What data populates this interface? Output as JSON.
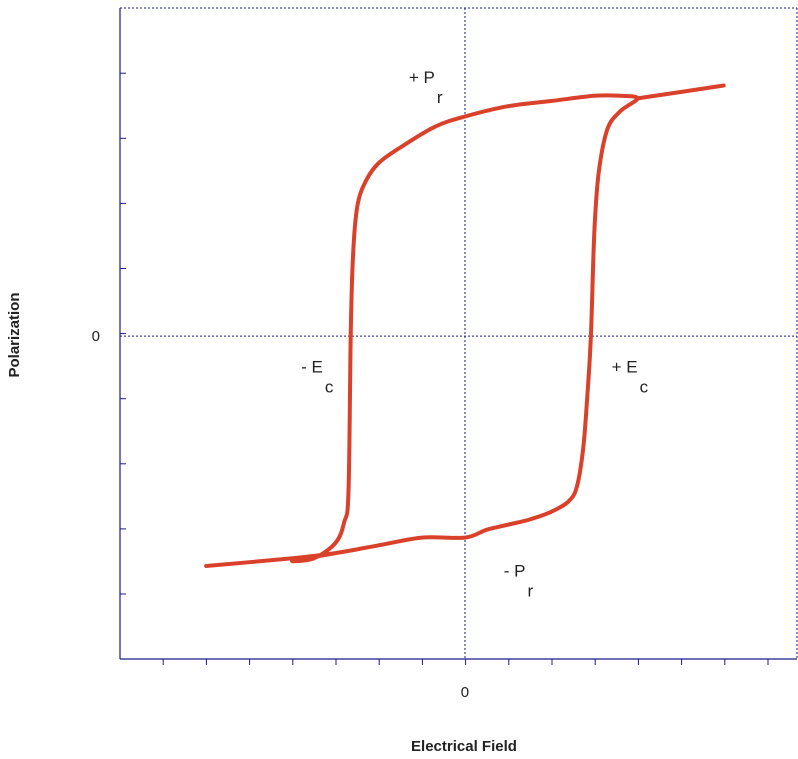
{
  "chart_data": {
    "type": "line",
    "xlabel": "Electrical Field",
    "ylabel": "Polarization",
    "x_ticks": [
      {
        "value": 0,
        "label": "0"
      }
    ],
    "y_ticks": [
      {
        "value": 0,
        "label": "0"
      }
    ],
    "xlim": [
      -8,
      7.7
    ],
    "ylim": [
      -1.25,
      1.27
    ],
    "grid": false,
    "zero_lines": true,
    "series_color": "#d9412b",
    "axis_color": "#1a1a8c",
    "series": [
      {
        "points": [
          [
            -6.0,
            -0.89
          ],
          [
            -4.0,
            -0.86
          ],
          [
            -3.0,
            -0.84
          ],
          [
            -2.0,
            -0.81
          ],
          [
            -1.0,
            -0.78
          ],
          [
            0.0,
            -0.78
          ],
          [
            0.5,
            -0.75
          ],
          [
            1.0,
            -0.73
          ],
          [
            1.5,
            -0.71
          ],
          [
            2.0,
            -0.68
          ],
          [
            2.4,
            -0.64
          ],
          [
            2.6,
            -0.58
          ],
          [
            2.75,
            -0.42
          ],
          [
            2.85,
            -0.2
          ],
          [
            2.92,
            0.0
          ],
          [
            3.0,
            0.4
          ],
          [
            3.1,
            0.63
          ],
          [
            3.3,
            0.8
          ],
          [
            3.6,
            0.87
          ],
          [
            4.0,
            0.92
          ],
          [
            3.6,
            0.93
          ],
          [
            3.0,
            0.93
          ],
          [
            2.0,
            0.91
          ],
          [
            1.0,
            0.89
          ],
          [
            0.0,
            0.85
          ],
          [
            -0.7,
            0.81
          ],
          [
            -1.5,
            0.73
          ],
          [
            -2.0,
            0.67
          ],
          [
            -2.3,
            0.6
          ],
          [
            -2.5,
            0.5
          ],
          [
            -2.6,
            0.3
          ],
          [
            -2.65,
            0.0
          ],
          [
            -2.7,
            -0.6
          ],
          [
            -2.8,
            -0.72
          ],
          [
            -3.0,
            -0.8
          ],
          [
            -3.5,
            -0.86
          ],
          [
            -4.0,
            -0.87
          ],
          [
            -3.0,
            -0.84
          ]
        ],
        "extension": [
          [
            4.0,
            0.92
          ],
          [
            6.0,
            0.97
          ]
        ]
      }
    ],
    "annotations": [
      {
        "text": "+ P",
        "sub": "r",
        "x": -1.3,
        "y": 0.98
      },
      {
        "text": "- P",
        "sub": "r",
        "x": 0.9,
        "y": -0.93
      },
      {
        "text": "- E",
        "sub": "c",
        "x": -3.8,
        "y": -0.14
      },
      {
        "text": "+ E",
        "sub": "c",
        "x": 3.4,
        "y": -0.14
      }
    ]
  }
}
